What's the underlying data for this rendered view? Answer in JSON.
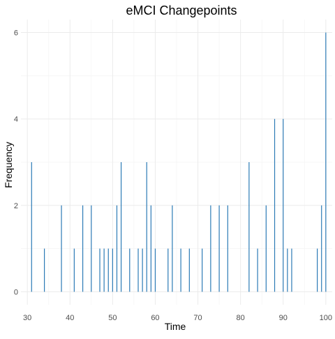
{
  "chart_data": {
    "type": "bar",
    "title": "eMCI Changepoints",
    "xlabel": "Time",
    "ylabel": "Frequency",
    "xlim": [
      28.5,
      101.5
    ],
    "ylim": [
      -0.3,
      6.3
    ],
    "x_ticks": [
      30,
      40,
      50,
      60,
      70,
      80,
      90,
      100
    ],
    "y_ticks": [
      0,
      2,
      4,
      6
    ],
    "grid": true,
    "legend": "none",
    "bar_color": "#2c7bb6",
    "x": [
      31,
      34,
      38,
      41,
      43,
      45,
      47,
      48,
      49,
      50,
      51,
      52,
      54,
      56,
      57,
      58,
      59,
      60,
      63,
      64,
      66,
      68,
      71,
      73,
      75,
      77,
      82,
      84,
      86,
      88,
      90,
      91,
      92,
      98,
      99,
      100
    ],
    "values": [
      3,
      1,
      2,
      1,
      2,
      2,
      1,
      1,
      1,
      1,
      2,
      3,
      1,
      1,
      1,
      3,
      2,
      1,
      1,
      2,
      1,
      1,
      1,
      2,
      2,
      2,
      3,
      1,
      2,
      4,
      4,
      1,
      1,
      1,
      2,
      6
    ]
  }
}
